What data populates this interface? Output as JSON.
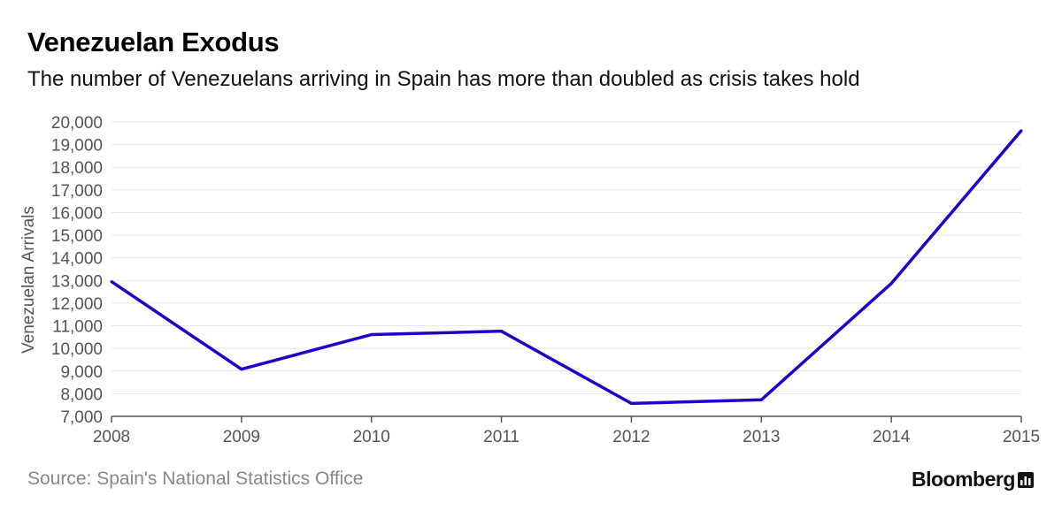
{
  "chart_data": {
    "type": "line",
    "title": "Venezuelan Exodus",
    "subtitle": "The number of Venezuelans arriving in Spain has more than doubled as crisis takes hold",
    "xlabel": "",
    "ylabel": "Venezuelan Arrivals",
    "categories": [
      "2008",
      "2009",
      "2010",
      "2011",
      "2012",
      "2013",
      "2014",
      "2015"
    ],
    "series": [
      {
        "name": "Venezuelan Arrivals",
        "values": [
          12950,
          9080,
          10610,
          10760,
          7570,
          7730,
          12870,
          19620
        ],
        "color": "#2200cc"
      }
    ],
    "ylim": [
      7000,
      20000
    ],
    "yticks": [
      7000,
      8000,
      9000,
      10000,
      11000,
      12000,
      13000,
      14000,
      15000,
      16000,
      17000,
      18000,
      19000,
      20000
    ],
    "ytick_labels": [
      "7,000",
      "8,000",
      "9,000",
      "10,000",
      "11,000",
      "12,000",
      "13,000",
      "14,000",
      "15,000",
      "16,000",
      "17,000",
      "18,000",
      "19,000",
      "20,000"
    ],
    "grid": true,
    "source": "Source: Spain's National Statistics Office"
  },
  "brand": {
    "name": "Bloomberg",
    "icon": "bloomberg-terminal-icon"
  }
}
